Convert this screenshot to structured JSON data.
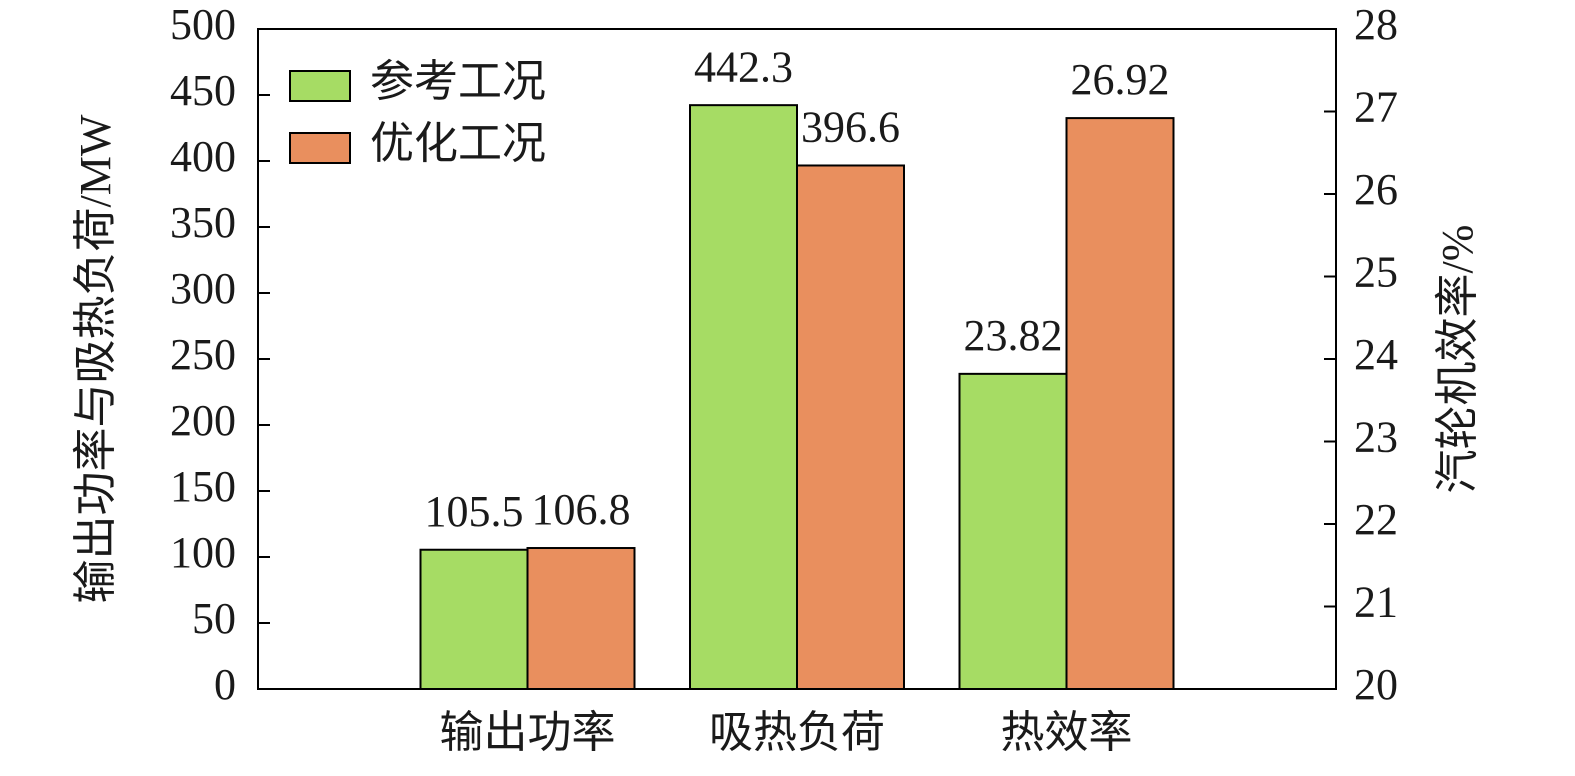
{
  "chart_data": {
    "type": "bar",
    "categories": [
      "输出功率",
      "吸热负荷",
      "热效率"
    ],
    "value_axes": [
      "y",
      "y",
      "y2"
    ],
    "series": [
      {
        "name": "参考工况",
        "color": "#a6dc64",
        "values": [
          105.5,
          442.3,
          23.82
        ]
      },
      {
        "name": "优化工况",
        "color": "#e98f5e",
        "values": [
          106.8,
          396.6,
          26.92
        ]
      }
    ],
    "ylabel": "输出功率与吸热负荷/MW",
    "y2label": "汽轮机效率/%",
    "ylim": [
      0,
      500
    ],
    "yticks": [
      0,
      50,
      100,
      150,
      200,
      250,
      300,
      350,
      400,
      450,
      500
    ],
    "y2lim": [
      20,
      28
    ],
    "y2ticks": [
      20,
      21,
      22,
      23,
      24,
      25,
      26,
      27,
      28
    ],
    "legend": "upper left"
  }
}
